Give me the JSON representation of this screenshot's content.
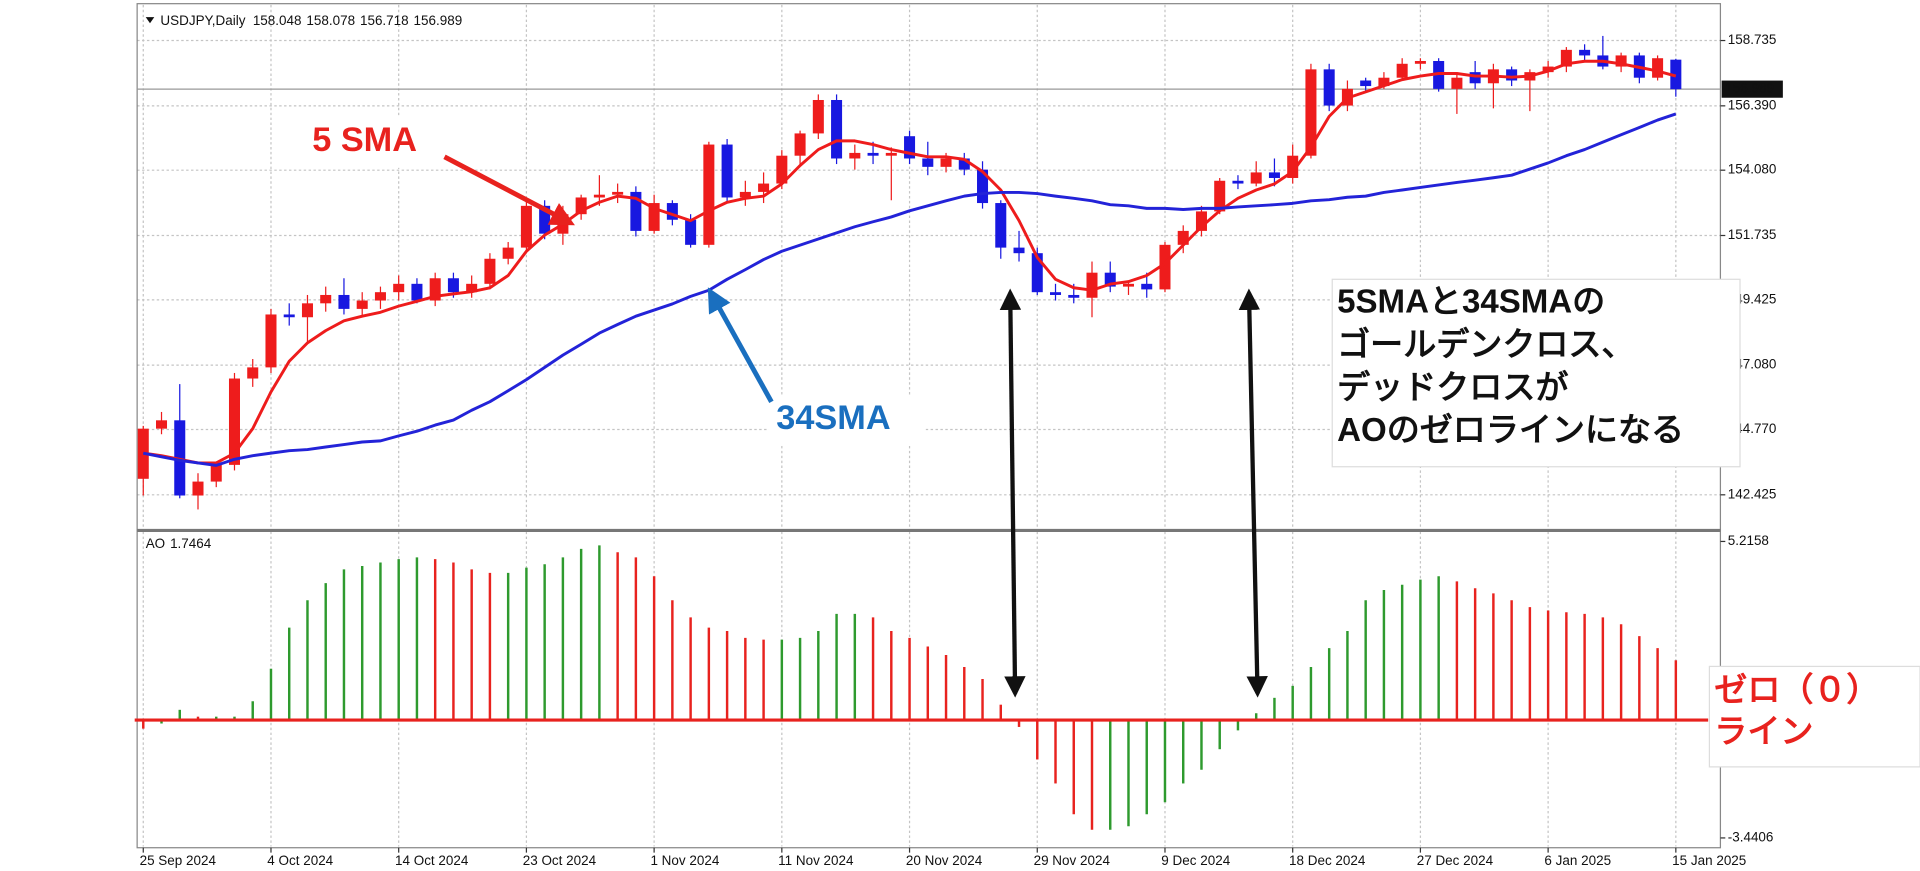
{
  "chart_data": [
    {
      "type": "candlestick",
      "title": "USDJPY,Daily",
      "up_color": "#ee1c1c",
      "down_color": "#1818e0",
      "grid": true,
      "ylim": [
        141.19,
        159.97
      ],
      "yticks": [
        158.735,
        {
          "value": 156.39,
          "label": "156.390"
        },
        {
          "value": 154.08,
          "label": "154.080"
        },
        151.735,
        149.425,
        {
          "value": 147.08,
          "label": "147.080"
        },
        {
          "value": 144.77,
          "label": "144.770"
        },
        142.425
      ],
      "open": [
        143.0,
        144.8,
        145.1,
        142.4,
        142.9,
        143.5,
        146.6,
        147.0,
        148.9,
        148.8,
        149.3,
        149.6,
        149.1,
        149.4,
        149.7,
        150.0,
        149.4,
        150.2,
        149.7,
        150.0,
        150.9,
        151.3,
        152.8,
        151.8,
        152.5,
        153.1,
        153.2,
        153.3,
        151.9,
        152.9,
        152.3,
        151.4,
        155.0,
        153.1,
        153.3,
        153.6,
        154.6,
        155.4,
        156.6,
        154.5,
        154.7,
        154.6,
        155.3,
        154.5,
        154.2,
        154.5,
        154.1,
        152.9,
        151.3,
        151.1,
        149.7,
        149.6,
        149.5,
        150.4,
        149.9,
        150.0,
        149.8,
        151.4,
        151.9,
        152.6,
        153.7,
        153.6,
        154.0,
        153.8,
        154.6,
        157.7,
        156.4,
        157.3,
        157.1,
        157.4,
        157.9,
        158.0,
        157.0,
        157.6,
        157.2,
        157.7,
        157.3,
        157.6,
        157.8,
        158.4,
        158.2,
        157.8,
        158.2,
        157.4,
        158.048
      ],
      "high": [
        144.9,
        145.4,
        146.4,
        143.2,
        143.6,
        146.8,
        147.3,
        149.1,
        149.3,
        149.6,
        149.9,
        150.2,
        149.7,
        149.9,
        150.3,
        150.2,
        150.4,
        150.4,
        150.3,
        151.1,
        151.5,
        153.1,
        153.0,
        152.8,
        153.2,
        153.9,
        153.6,
        153.5,
        153.2,
        153.0,
        152.5,
        155.1,
        155.2,
        153.7,
        154.0,
        154.8,
        155.5,
        156.8,
        156.8,
        155.0,
        155.1,
        154.9,
        155.5,
        155.1,
        154.7,
        154.7,
        154.4,
        153.0,
        151.9,
        151.3,
        150.0,
        150.0,
        150.8,
        150.8,
        150.1,
        150.4,
        151.5,
        152.1,
        152.8,
        153.8,
        153.9,
        154.4,
        154.5,
        155.0,
        157.9,
        157.9,
        157.3,
        157.4,
        157.6,
        158.1,
        158.1,
        158.1,
        157.6,
        158.0,
        157.9,
        157.8,
        157.7,
        158.0,
        158.5,
        158.6,
        158.9,
        158.3,
        158.3,
        158.2,
        158.078
      ],
      "low": [
        142.4,
        144.6,
        142.3,
        141.9,
        142.7,
        143.3,
        146.3,
        146.8,
        148.5,
        147.9,
        149.0,
        148.9,
        148.8,
        149.1,
        149.4,
        149.3,
        149.2,
        149.5,
        149.5,
        149.8,
        150.7,
        151.1,
        151.6,
        151.4,
        152.3,
        152.8,
        152.9,
        151.7,
        151.8,
        152.1,
        151.3,
        151.3,
        152.9,
        152.8,
        152.9,
        153.4,
        154.3,
        155.2,
        154.3,
        154.1,
        154.3,
        153.0,
        154.3,
        153.9,
        154.0,
        153.9,
        152.7,
        150.9,
        150.8,
        149.6,
        149.4,
        149.3,
        148.8,
        149.7,
        149.6,
        149.5,
        149.7,
        151.1,
        151.7,
        152.5,
        153.4,
        153.5,
        153.5,
        153.6,
        154.5,
        156.2,
        156.2,
        156.9,
        157.0,
        157.3,
        157.7,
        156.9,
        156.1,
        157.0,
        156.3,
        157.1,
        156.2,
        157.4,
        157.6,
        158.0,
        157.7,
        157.6,
        157.2,
        157.3,
        156.718
      ],
      "close": [
        144.8,
        145.1,
        142.4,
        142.9,
        143.5,
        146.6,
        147.0,
        148.9,
        148.8,
        149.3,
        149.6,
        149.1,
        149.4,
        149.7,
        150.0,
        149.4,
        150.2,
        149.7,
        150.0,
        150.9,
        151.3,
        152.8,
        151.8,
        152.5,
        153.1,
        153.2,
        153.3,
        151.9,
        152.9,
        152.3,
        151.4,
        155.0,
        153.1,
        153.3,
        153.6,
        154.6,
        155.4,
        156.6,
        154.5,
        154.7,
        154.6,
        154.7,
        154.5,
        154.2,
        154.5,
        154.1,
        152.9,
        151.3,
        151.1,
        149.7,
        149.6,
        149.5,
        150.4,
        149.9,
        150.0,
        149.8,
        151.4,
        151.9,
        152.6,
        153.7,
        153.6,
        154.0,
        153.8,
        154.6,
        157.7,
        156.4,
        157.0,
        157.1,
        157.4,
        157.9,
        158.0,
        157.0,
        157.4,
        157.2,
        157.7,
        157.3,
        157.6,
        157.8,
        158.4,
        158.2,
        157.8,
        158.2,
        157.4,
        158.1,
        156.989
      ],
      "lines": [
        {
          "color": "#ee1c1c",
          "values": [
            143.92,
            143.83,
            143.7,
            143.57,
            143.57,
            143.92,
            144.8,
            146.12,
            147.22,
            147.88,
            148.32,
            148.67,
            148.84,
            148.98,
            149.2,
            149.37,
            149.55,
            149.64,
            149.72,
            149.86,
            150.3,
            151.17,
            151.75,
            152.14,
            152.62,
            152.93,
            153.15,
            153.07,
            152.71,
            152.49,
            152.27,
            152.62,
            152.93,
            153.07,
            153.15,
            153.59,
            154.25,
            154.82,
            155.13,
            155.13,
            155.0,
            154.82,
            154.69,
            154.56,
            154.56,
            154.47,
            154.03,
            153.37,
            152.27,
            150.95,
            150.16,
            149.86,
            149.77,
            149.99,
            150.08,
            150.3,
            150.73,
            151.39,
            152.05,
            152.62,
            153.07,
            153.37,
            153.59,
            154.03,
            154.91,
            156.01,
            156.67,
            156.89,
            157.11,
            157.33,
            157.46,
            157.55,
            157.55,
            157.46,
            157.46,
            157.42,
            157.46,
            157.64,
            157.9,
            157.99,
            157.99,
            157.9,
            157.77,
            157.64,
            157.46
          ]
        },
        {
          "color": "#2323d8",
          "values": [
            143.92,
            143.79,
            143.66,
            143.57,
            143.48,
            143.7,
            143.83,
            143.92,
            144.01,
            144.05,
            144.14,
            144.23,
            144.32,
            144.36,
            144.54,
            144.71,
            144.93,
            145.11,
            145.46,
            145.77,
            146.16,
            146.56,
            147.0,
            147.44,
            147.83,
            148.23,
            148.54,
            148.84,
            149.06,
            149.28,
            149.55,
            149.77,
            150.16,
            150.51,
            150.87,
            151.17,
            151.39,
            151.61,
            151.83,
            152.05,
            152.23,
            152.4,
            152.62,
            152.8,
            152.98,
            153.15,
            153.24,
            153.28,
            153.28,
            153.24,
            153.15,
            153.07,
            152.98,
            152.84,
            152.8,
            152.71,
            152.71,
            152.67,
            152.71,
            152.71,
            152.76,
            152.8,
            152.84,
            152.89,
            152.98,
            153.02,
            153.11,
            153.15,
            153.28,
            153.37,
            153.46,
            153.55,
            153.64,
            153.72,
            153.81,
            153.9,
            154.12,
            154.34,
            154.6,
            154.82,
            155.09,
            155.35,
            155.61,
            155.88,
            156.1
          ]
        }
      ],
      "annotations": {
        "sma5": "5 SMA",
        "sma34": "34SMA",
        "callout": [
          "5SMAと34SMAの",
          "ゴールデンクロス、",
          "デッドクロスが",
          "AOのゼロラインになる"
        ]
      }
    },
    {
      "type": "bar",
      "title": "AO",
      "up_color": "#2e9a2e",
      "down_color": "#e8221e",
      "grid": true,
      "ylim": [
        -3.655,
        5.43
      ],
      "yticks": [
        5.2158,
        -3.4406
      ],
      "categories": [
        "25 Sep 2024",
        null,
        null,
        null,
        null,
        null,
        null,
        "4 Oct 2024",
        null,
        null,
        null,
        null,
        null,
        null,
        "14 Oct 2024",
        null,
        null,
        null,
        null,
        null,
        null,
        "23 Oct 2024",
        null,
        null,
        null,
        null,
        null,
        null,
        "1 Nov 2024",
        null,
        null,
        null,
        null,
        null,
        null,
        "11 Nov 2024",
        null,
        null,
        null,
        null,
        null,
        null,
        "20 Nov 2024",
        null,
        null,
        null,
        null,
        null,
        null,
        "29 Nov 2024",
        null,
        null,
        null,
        null,
        null,
        null,
        "9 Dec 2024",
        null,
        null,
        null,
        null,
        null,
        null,
        "18 Dec 2024",
        null,
        null,
        null,
        null,
        null,
        null,
        "27 Dec 2024",
        null,
        null,
        null,
        null,
        null,
        null,
        "6 Jan 2025",
        null,
        null,
        null,
        null,
        null,
        null,
        "15 Jan 2025"
      ],
      "values": [
        -0.25,
        -0.1,
        0.3,
        0.1,
        0.1,
        0.1,
        0.55,
        1.5,
        2.7,
        3.5,
        4.0,
        4.4,
        4.5,
        4.6,
        4.7,
        4.75,
        4.7,
        4.6,
        4.4,
        4.3,
        4.3,
        4.45,
        4.55,
        4.75,
        5.0,
        5.1,
        4.9,
        4.75,
        4.2,
        3.5,
        3.0,
        2.7,
        2.6,
        2.4,
        2.35,
        2.35,
        2.4,
        2.6,
        3.1,
        3.1,
        3.0,
        2.6,
        2.4,
        2.15,
        1.9,
        1.55,
        1.2,
        0.45,
        -0.2,
        -1.15,
        -1.85,
        -2.75,
        -3.2,
        -3.2,
        -3.1,
        -2.75,
        -2.4,
        -1.85,
        -1.45,
        -0.85,
        -0.3,
        0.2,
        0.65,
        1.0,
        1.55,
        2.1,
        2.6,
        3.5,
        3.8,
        3.95,
        4.1,
        4.2,
        4.05,
        3.85,
        3.7,
        3.5,
        3.3,
        3.2,
        3.15,
        3.1,
        3.0,
        2.8,
        2.45,
        2.1,
        1.7464
      ],
      "annotations": {
        "zero_label": [
          "ゼロ（０）",
          "ライン"
        ]
      }
    }
  ]
}
